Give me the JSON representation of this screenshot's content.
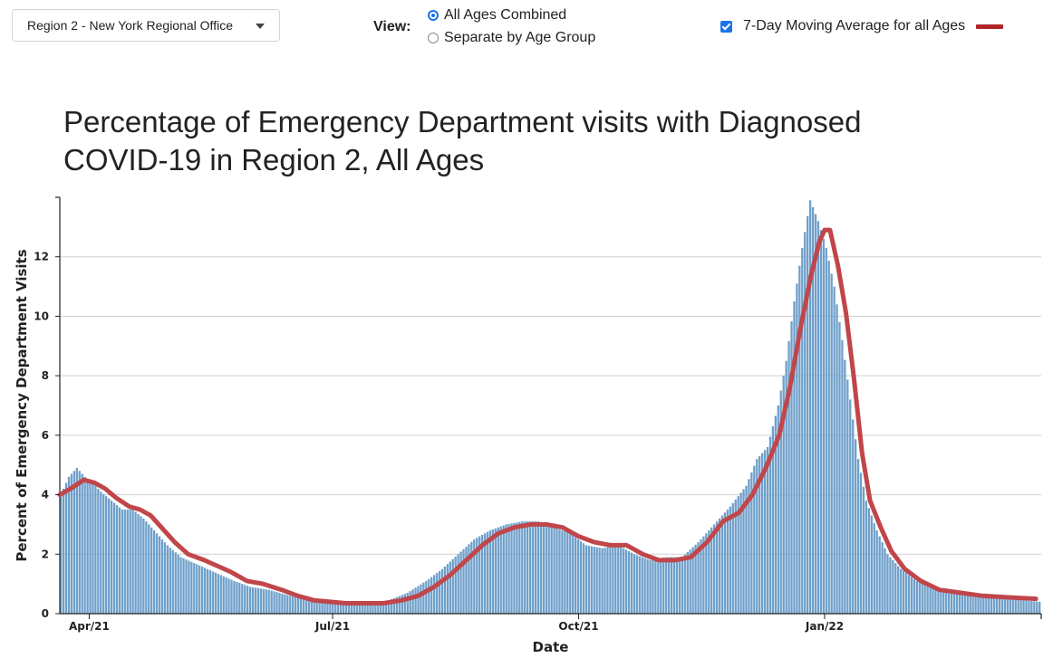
{
  "controls": {
    "region_select": "Region 2 - New York Regional Office",
    "view_label": "View:",
    "view_options": [
      {
        "label": "All Ages Combined",
        "selected": true
      },
      {
        "label": "Separate by Age Group",
        "selected": false
      }
    ],
    "moving_average_label": "7-Day Moving Average for all Ages",
    "moving_average_checked": true,
    "moving_average_color": "#b0252a"
  },
  "chart_data": {
    "type": "bar",
    "title": "Percentage of Emergency Department visits with Diagnosed COVID-19 in Region 2, All Ages",
    "xlabel": "Date",
    "ylabel": "Percent of Emergency Department Visits",
    "x_range": [
      "2021-03-21",
      "2022-03-23"
    ],
    "ylim": [
      0,
      14
    ],
    "yticks": [
      0,
      2,
      4,
      6,
      8,
      10,
      12
    ],
    "xticks": [
      {
        "label": "Apr/21",
        "date": "2021-04-01"
      },
      {
        "label": "Jul/21",
        "date": "2021-07-01"
      },
      {
        "label": "Oct/21",
        "date": "2021-10-01"
      },
      {
        "label": "Jan/22",
        "date": "2022-01-01"
      }
    ],
    "grid": true,
    "bar_color": "#6f9fca",
    "line_color": "#c0464a",
    "series": [
      {
        "kind": "bar",
        "points": [
          [
            "2021-03-21",
            4.0
          ],
          [
            "2021-03-24",
            4.6
          ],
          [
            "2021-03-27",
            4.9
          ],
          [
            "2021-03-30",
            4.6
          ],
          [
            "2021-04-02",
            4.4
          ],
          [
            "2021-04-05",
            4.1
          ],
          [
            "2021-04-09",
            3.8
          ],
          [
            "2021-04-13",
            3.5
          ],
          [
            "2021-04-17",
            3.5
          ],
          [
            "2021-04-21",
            3.2
          ],
          [
            "2021-04-25",
            2.8
          ],
          [
            "2021-04-30",
            2.3
          ],
          [
            "2021-05-05",
            1.9
          ],
          [
            "2021-05-10",
            1.7
          ],
          [
            "2021-05-15",
            1.5
          ],
          [
            "2021-05-20",
            1.3
          ],
          [
            "2021-05-25",
            1.1
          ],
          [
            "2021-05-31",
            0.9
          ],
          [
            "2021-06-07",
            0.8
          ],
          [
            "2021-06-15",
            0.6
          ],
          [
            "2021-06-22",
            0.45
          ],
          [
            "2021-06-30",
            0.35
          ],
          [
            "2021-07-08",
            0.3
          ],
          [
            "2021-07-15",
            0.35
          ],
          [
            "2021-07-22",
            0.45
          ],
          [
            "2021-07-29",
            0.7
          ],
          [
            "2021-08-05",
            1.1
          ],
          [
            "2021-08-11",
            1.5
          ],
          [
            "2021-08-17",
            2.0
          ],
          [
            "2021-08-23",
            2.5
          ],
          [
            "2021-08-29",
            2.8
          ],
          [
            "2021-09-04",
            3.0
          ],
          [
            "2021-09-10",
            3.1
          ],
          [
            "2021-09-16",
            3.1
          ],
          [
            "2021-09-22",
            2.9
          ],
          [
            "2021-09-28",
            2.7
          ],
          [
            "2021-10-04",
            2.3
          ],
          [
            "2021-10-10",
            2.2
          ],
          [
            "2021-10-16",
            2.3
          ],
          [
            "2021-10-22",
            2.0
          ],
          [
            "2021-10-28",
            1.8
          ],
          [
            "2021-11-03",
            1.9
          ],
          [
            "2021-11-09",
            1.9
          ],
          [
            "2021-11-15",
            2.4
          ],
          [
            "2021-11-21",
            3.0
          ],
          [
            "2021-11-27",
            3.6
          ],
          [
            "2021-12-03",
            4.3
          ],
          [
            "2021-12-07",
            5.2
          ],
          [
            "2021-12-11",
            5.6
          ],
          [
            "2021-12-15",
            7.0
          ],
          [
            "2021-12-18",
            8.5
          ],
          [
            "2021-12-21",
            10.5
          ],
          [
            "2021-12-24",
            12.3
          ],
          [
            "2021-12-27",
            13.9
          ],
          [
            "2021-12-30",
            13.2
          ],
          [
            "2022-01-02",
            12.3
          ],
          [
            "2022-01-05",
            11.0
          ],
          [
            "2022-01-08",
            9.2
          ],
          [
            "2022-01-11",
            7.2
          ],
          [
            "2022-01-14",
            5.2
          ],
          [
            "2022-01-17",
            3.8
          ],
          [
            "2022-01-21",
            2.8
          ],
          [
            "2022-01-25",
            2.0
          ],
          [
            "2022-01-30",
            1.5
          ],
          [
            "2022-02-05",
            1.1
          ],
          [
            "2022-02-12",
            0.8
          ],
          [
            "2022-02-20",
            0.7
          ],
          [
            "2022-02-28",
            0.6
          ],
          [
            "2022-03-08",
            0.5
          ],
          [
            "2022-03-16",
            0.45
          ],
          [
            "2022-03-23",
            0.4
          ]
        ]
      },
      {
        "kind": "line",
        "points": [
          [
            "2021-03-21",
            4.0
          ],
          [
            "2021-03-25",
            4.2
          ],
          [
            "2021-03-30",
            4.5
          ],
          [
            "2021-04-03",
            4.4
          ],
          [
            "2021-04-07",
            4.2
          ],
          [
            "2021-04-11",
            3.9
          ],
          [
            "2021-04-16",
            3.6
          ],
          [
            "2021-04-20",
            3.5
          ],
          [
            "2021-04-24",
            3.3
          ],
          [
            "2021-04-28",
            2.9
          ],
          [
            "2021-05-03",
            2.4
          ],
          [
            "2021-05-08",
            2.0
          ],
          [
            "2021-05-14",
            1.8
          ],
          [
            "2021-05-19",
            1.6
          ],
          [
            "2021-05-24",
            1.4
          ],
          [
            "2021-05-30",
            1.1
          ],
          [
            "2021-06-05",
            1.0
          ],
          [
            "2021-06-12",
            0.8
          ],
          [
            "2021-06-18",
            0.6
          ],
          [
            "2021-06-24",
            0.45
          ],
          [
            "2021-06-30",
            0.4
          ],
          [
            "2021-07-06",
            0.35
          ],
          [
            "2021-07-20",
            0.35
          ],
          [
            "2021-07-27",
            0.45
          ],
          [
            "2021-08-02",
            0.6
          ],
          [
            "2021-08-08",
            0.9
          ],
          [
            "2021-08-14",
            1.3
          ],
          [
            "2021-08-20",
            1.8
          ],
          [
            "2021-08-26",
            2.3
          ],
          [
            "2021-09-01",
            2.7
          ],
          [
            "2021-09-07",
            2.9
          ],
          [
            "2021-09-13",
            3.0
          ],
          [
            "2021-09-19",
            3.0
          ],
          [
            "2021-09-25",
            2.9
          ],
          [
            "2021-10-01",
            2.6
          ],
          [
            "2021-10-07",
            2.4
          ],
          [
            "2021-10-13",
            2.3
          ],
          [
            "2021-10-19",
            2.3
          ],
          [
            "2021-10-25",
            2.0
          ],
          [
            "2021-10-31",
            1.8
          ],
          [
            "2021-11-06",
            1.8
          ],
          [
            "2021-11-12",
            1.9
          ],
          [
            "2021-11-18",
            2.4
          ],
          [
            "2021-11-24",
            3.1
          ],
          [
            "2021-11-30",
            3.4
          ],
          [
            "2021-12-05",
            4.0
          ],
          [
            "2021-12-10",
            4.9
          ],
          [
            "2021-12-15",
            6.0
          ],
          [
            "2021-12-19",
            7.6
          ],
          [
            "2021-12-23",
            9.6
          ],
          [
            "2021-12-27",
            11.4
          ],
          [
            "2021-12-30",
            12.5
          ],
          [
            "2022-01-01",
            12.9
          ],
          [
            "2022-01-03",
            12.9
          ],
          [
            "2022-01-06",
            11.7
          ],
          [
            "2022-01-09",
            10.1
          ],
          [
            "2022-01-12",
            7.9
          ],
          [
            "2022-01-15",
            5.4
          ],
          [
            "2022-01-18",
            3.8
          ],
          [
            "2022-01-22",
            2.9
          ],
          [
            "2022-01-26",
            2.1
          ],
          [
            "2022-01-31",
            1.5
          ],
          [
            "2022-02-06",
            1.1
          ],
          [
            "2022-02-13",
            0.8
          ],
          [
            "2022-02-21",
            0.7
          ],
          [
            "2022-03-01",
            0.6
          ],
          [
            "2022-03-10",
            0.55
          ],
          [
            "2022-03-21",
            0.5
          ]
        ]
      }
    ]
  }
}
